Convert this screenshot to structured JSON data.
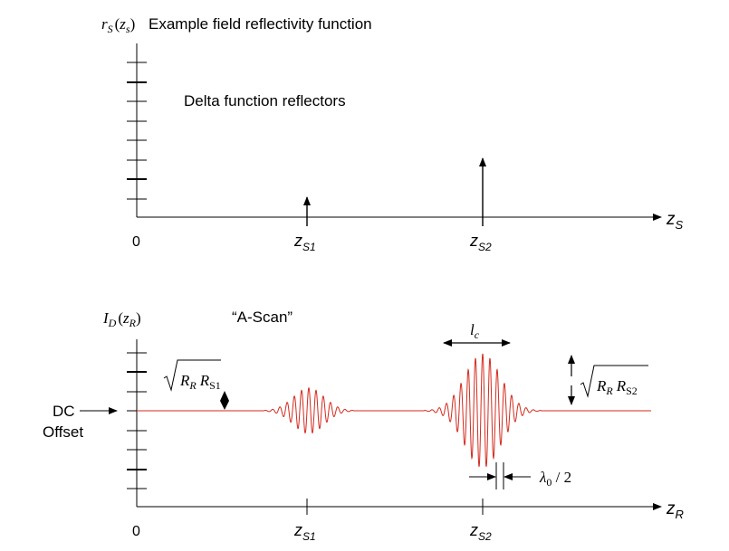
{
  "colors": {
    "axis": "#000000",
    "signal": "#d42a1e"
  },
  "top_panel": {
    "y_label_func": "r",
    "y_label_sub": "S",
    "y_label_open": "(",
    "y_label_arg": "z",
    "y_label_arg_sub": "s",
    "y_label_close": ")",
    "title": "Example field reflectivity function",
    "annotation": "Delta function reflectors",
    "origin": "0",
    "axis_label": "z",
    "axis_label_sub": "S",
    "marker1_main": "z",
    "marker1_sub": "S1",
    "marker2_main": "z",
    "marker2_sub": "S2"
  },
  "bottom_panel": {
    "y_label_func": "I",
    "y_label_sub": "D",
    "y_label_open": "(",
    "y_label_arg": "z",
    "y_label_arg_sub": "R",
    "y_label_close": ")",
    "title": "“A-Scan”",
    "dc_line1": "DC",
    "dc_line2": "Offset",
    "origin": "0",
    "axis_label": "z",
    "axis_label_sub": "R",
    "marker1_main": "z",
    "marker1_sub": "S1",
    "marker2_main": "z",
    "marker2_sub": "S2",
    "lc_main": "l",
    "lc_sub": "c",
    "amp1_a": "R",
    "amp1_a_sub": "R",
    "amp1_b": "R",
    "amp1_b_sub": "S1",
    "amp2_a": "R",
    "amp2_a_sub": "R",
    "amp2_b": "R",
    "amp2_b_sub": "S2",
    "lambda_main": "λ",
    "lambda_sub": "0",
    "lambda_rest": " / 2"
  },
  "chart_data": {
    "type": "line",
    "reflectors": [
      {
        "position": "z_S1",
        "relative_height": 0.4
      },
      {
        "position": "z_S2",
        "relative_height": 1.0
      }
    ],
    "interferogram_envelopes": [
      {
        "center": "z_S1",
        "relative_amplitude": 0.4
      },
      {
        "center": "z_S2",
        "relative_amplitude": 1.0
      }
    ]
  }
}
